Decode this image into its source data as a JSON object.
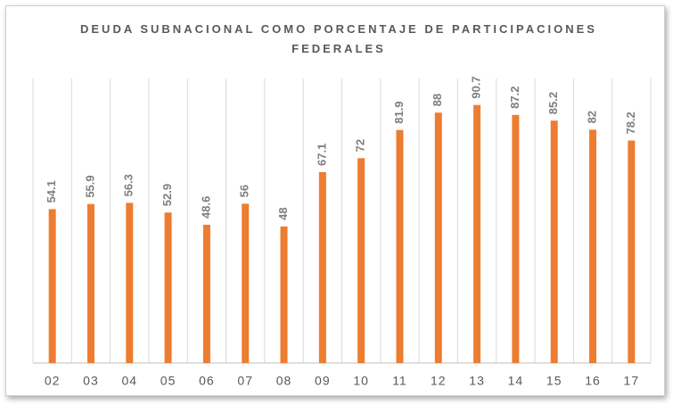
{
  "chart_data": {
    "type": "bar",
    "title": "DEUDA SUBNACIONAL COMO PORCENTAJE DE PARTICIPACIONES FEDERALES",
    "categories": [
      "02",
      "03",
      "04",
      "05",
      "06",
      "07",
      "08",
      "09",
      "10",
      "11",
      "12",
      "13",
      "14",
      "15",
      "16",
      "17"
    ],
    "values": [
      54.1,
      55.9,
      56.3,
      52.9,
      48.6,
      56,
      48,
      67.1,
      72,
      81.9,
      88,
      90.7,
      87.2,
      85.2,
      82,
      78.2
    ],
    "color": "#ed7d31",
    "ylim": [
      0,
      100
    ],
    "grid": true
  }
}
